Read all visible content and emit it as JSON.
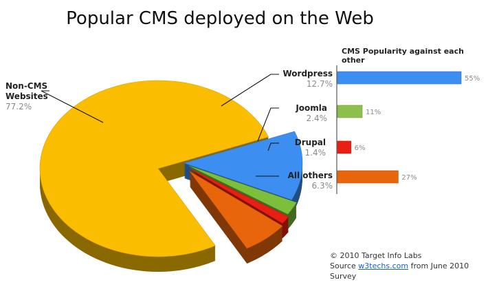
{
  "title": "Popular CMS deployed on the Web",
  "chart_data": [
    {
      "type": "pie",
      "categories": [
        "Non-CMS Websites",
        "Wordpress",
        "Joomla",
        "Drupal",
        "All others"
      ],
      "values": [
        77.2,
        12.7,
        2.4,
        1.4,
        6.3
      ],
      "value_labels": [
        "77.2%",
        "12.7%",
        "2.4%",
        "1.4%",
        "6.3%"
      ],
      "label_lines": [
        [
          "Non-CMS",
          "Websites"
        ],
        [
          "Wordpress"
        ],
        [
          "Joomla"
        ],
        [
          "Drupal"
        ],
        [
          "All others"
        ]
      ],
      "colors": [
        "#fbbd00",
        "#3c8ef0",
        "#7cbf3a",
        "#e81f12",
        "#e8650c"
      ],
      "exploded": [
        "Wordpress",
        "Joomla",
        "Drupal",
        "All others"
      ],
      "style": "3d"
    },
    {
      "type": "bar",
      "orientation": "horizontal",
      "title": "CMS Popularity against each other",
      "categories": [
        "Wordpress",
        "Joomla",
        "Drupal",
        "All others"
      ],
      "values": [
        55,
        11,
        6,
        27
      ],
      "value_labels": [
        "55%",
        "11%",
        "6%",
        "27%"
      ],
      "colors": [
        "#3c8ef0",
        "#8cc04a",
        "#e81f12",
        "#e8650c"
      ]
    }
  ],
  "footer": {
    "copyright": "© 2010 Target Info Labs",
    "source_prefix": "Source ",
    "source_link": "w3techs.com",
    "source_suffix": " from June 2010 Survey"
  }
}
